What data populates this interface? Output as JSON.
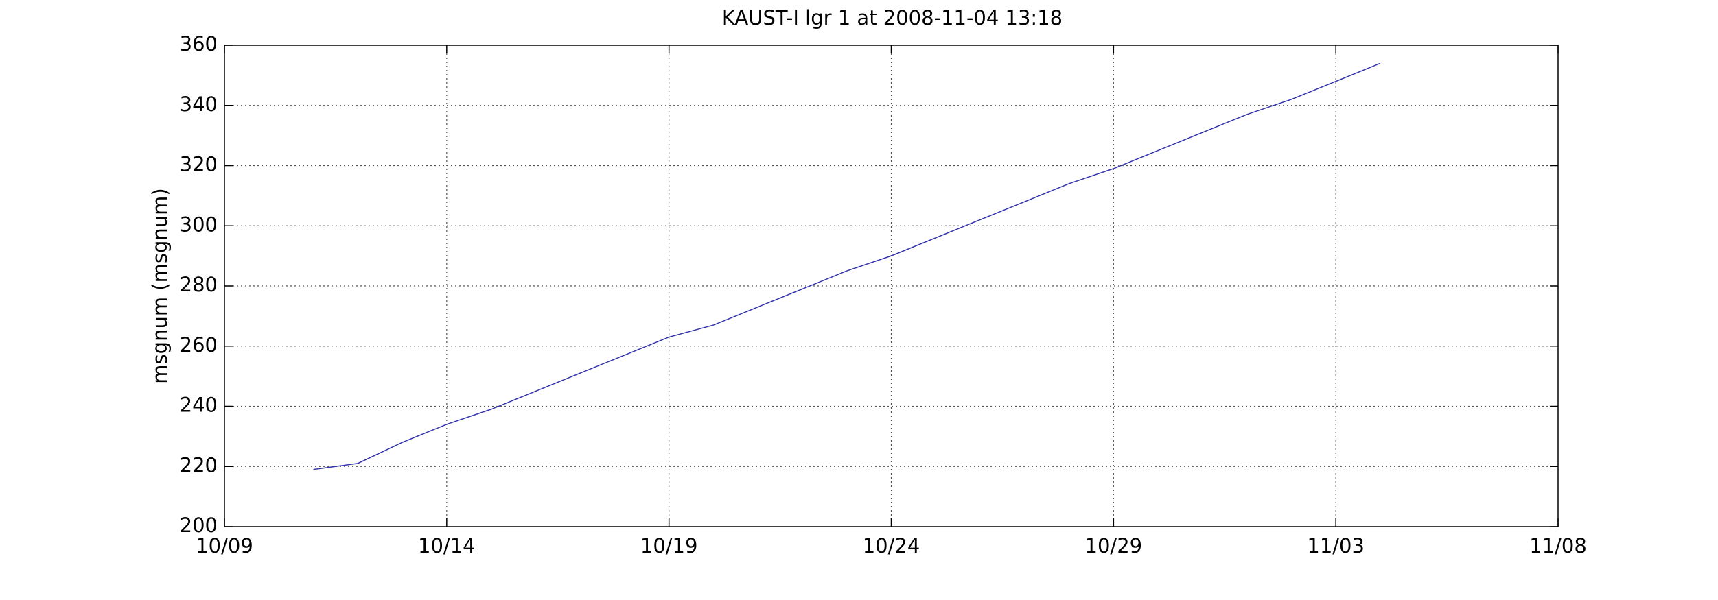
{
  "chart_data": {
    "type": "line",
    "title": "KAUST-I lgr 1 at 2008-11-04 13:18",
    "y_label": "msgnum (msgnum)",
    "x": [
      "10/11",
      "10/12",
      "10/13",
      "10/14",
      "10/15",
      "10/16",
      "10/17",
      "10/18",
      "10/19",
      "10/20",
      "10/21",
      "10/22",
      "10/23",
      "10/24",
      "10/25",
      "10/26",
      "10/27",
      "10/28",
      "10/29",
      "10/30",
      "10/31",
      "11/01",
      "11/02",
      "11/03",
      "11/04"
    ],
    "series": [
      {
        "name": "msgnum",
        "color": "#3333aa",
        "values": [
          219,
          221,
          228,
          234,
          239,
          245,
          251,
          257,
          263,
          267,
          273,
          279,
          285,
          290,
          296,
          302,
          308,
          314,
          319,
          325,
          331,
          337,
          342,
          348,
          354
        ]
      }
    ],
    "xlim": [
      "10/09",
      "11/08"
    ],
    "xticks": [
      "10/09",
      "10/14",
      "10/19",
      "10/24",
      "10/29",
      "11/03",
      "11/08"
    ],
    "ylim": [
      200,
      360
    ],
    "yticks": [
      200,
      220,
      240,
      260,
      280,
      300,
      320,
      340,
      360
    ],
    "grid": true
  }
}
